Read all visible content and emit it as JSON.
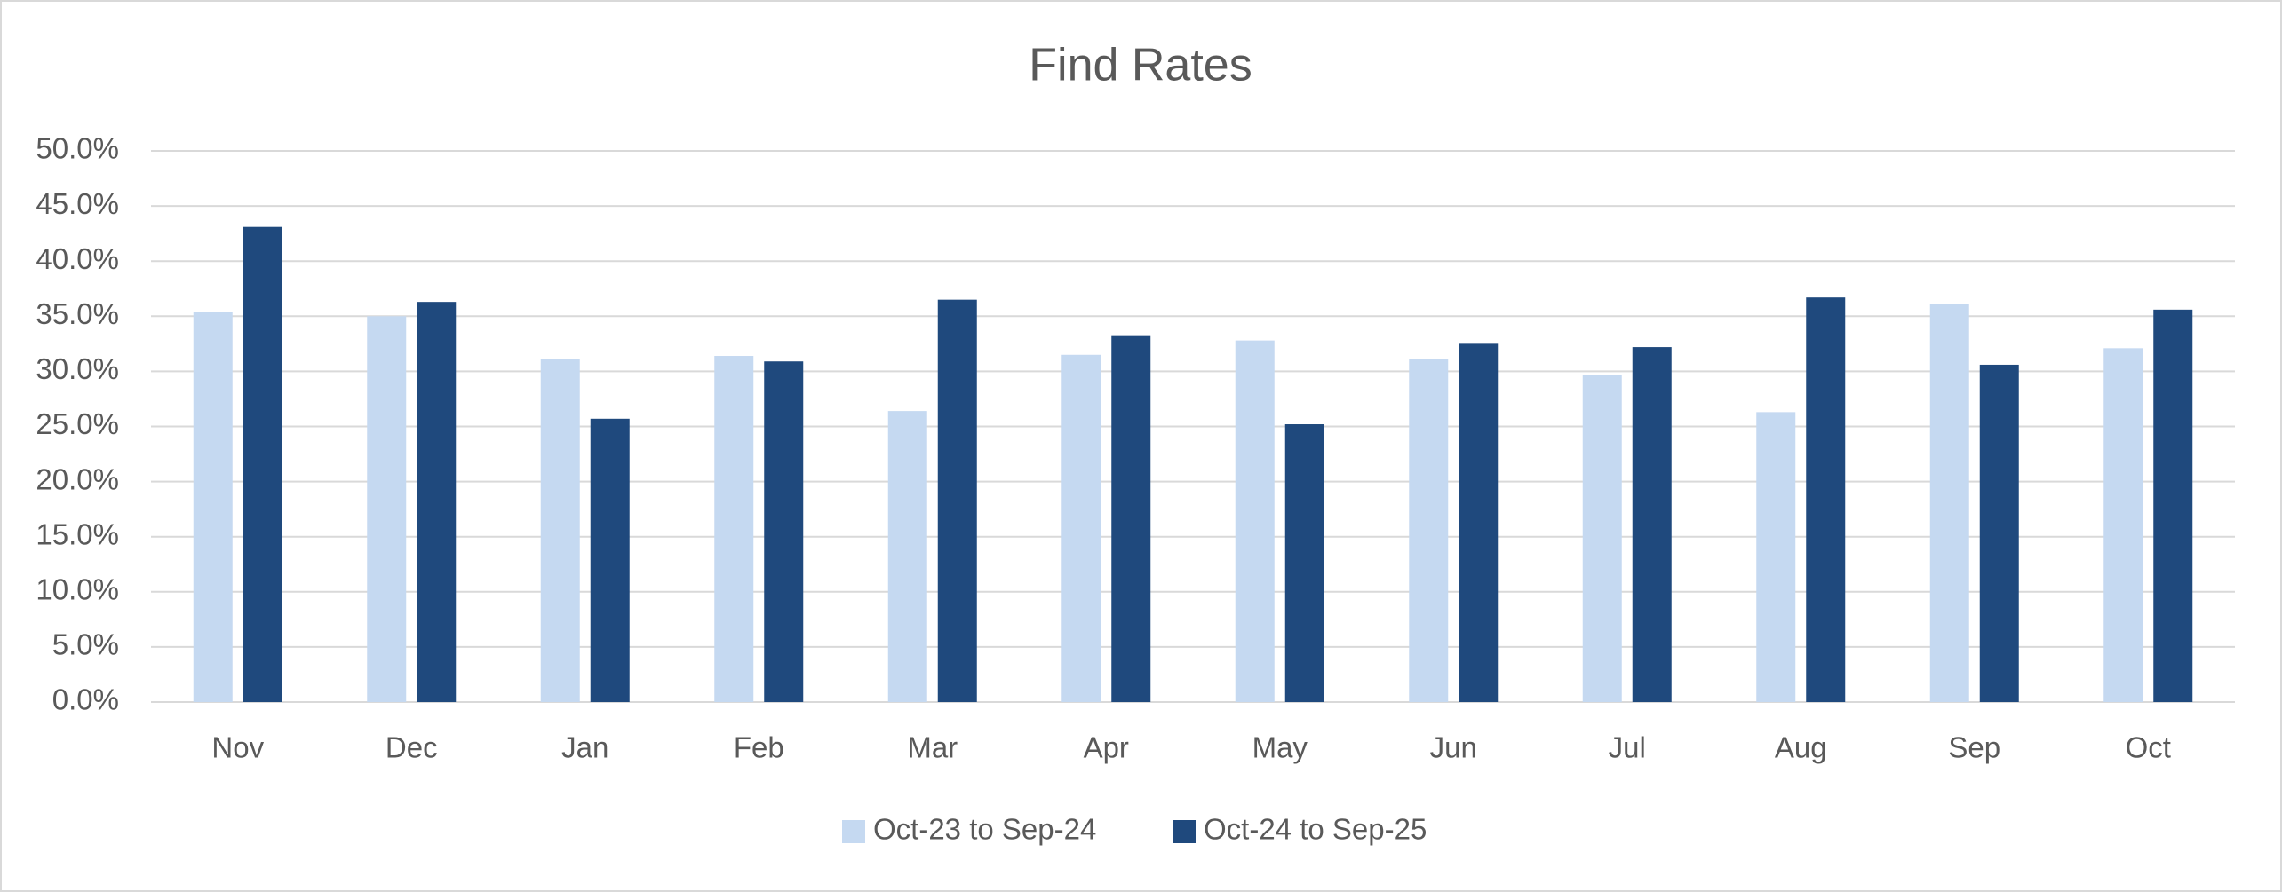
{
  "chart_data": {
    "type": "bar",
    "title": "Find Rates",
    "categories": [
      "Nov",
      "Dec",
      "Jan",
      "Feb",
      "Mar",
      "Apr",
      "May",
      "Jun",
      "Jul",
      "Aug",
      "Sep",
      "Oct"
    ],
    "series": [
      {
        "name": "Oct-23 to Sep-24",
        "color": "#c5d9f1",
        "values": [
          35.4,
          35.0,
          31.1,
          31.4,
          26.4,
          31.5,
          32.8,
          31.1,
          29.7,
          26.3,
          36.1,
          32.1
        ]
      },
      {
        "name": "Oct-24 to Sep-25",
        "color": "#1f497d",
        "values": [
          43.1,
          36.3,
          25.7,
          30.9,
          36.5,
          33.2,
          25.2,
          32.5,
          32.2,
          36.7,
          30.6,
          35.6
        ]
      }
    ],
    "ylim": [
      0,
      50
    ],
    "yticks": [
      {
        "value": 0,
        "label": "0.0%"
      },
      {
        "value": 5,
        "label": "5.0%"
      },
      {
        "value": 10,
        "label": "10.0%"
      },
      {
        "value": 15,
        "label": "15.0%"
      },
      {
        "value": 20,
        "label": "20.0%"
      },
      {
        "value": 25,
        "label": "25.0%"
      },
      {
        "value": 30,
        "label": "30.0%"
      },
      {
        "value": 35,
        "label": "35.0%"
      },
      {
        "value": 40,
        "label": "40.0%"
      },
      {
        "value": 45,
        "label": "45.0%"
      },
      {
        "value": 50,
        "label": "50.0%"
      }
    ],
    "grid": true,
    "legend": "bottom"
  }
}
